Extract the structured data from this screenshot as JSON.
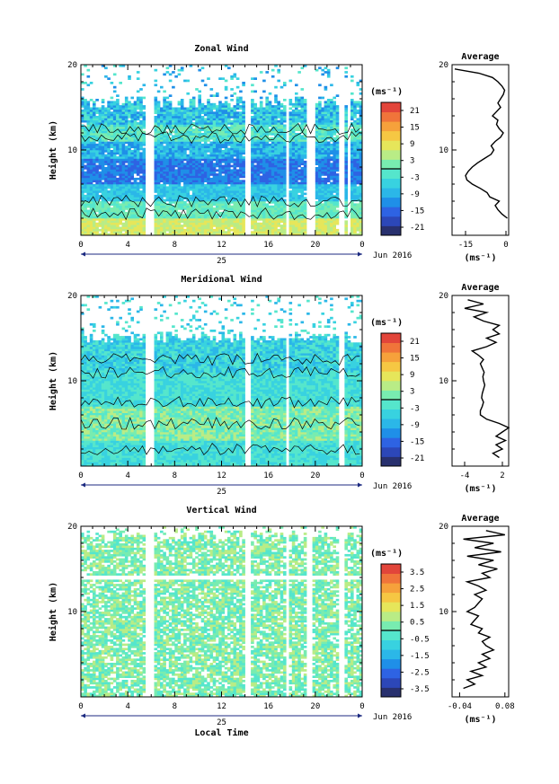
{
  "chart_data": [
    {
      "type": "heatmap",
      "title": "Zonal Wind",
      "ylabel": "Height (km)",
      "xticks": [
        "0",
        "4",
        "8",
        "12",
        "16",
        "20",
        "0"
      ],
      "yticks": [
        "20",
        "10"
      ],
      "date_label": "25",
      "month_label": "Jun 2016",
      "ylim": [
        0,
        20
      ],
      "xlim": [
        0,
        24
      ],
      "colorbar": {
        "unit_label": "(ms⁻¹)",
        "ticks": [
          "21",
          "15",
          "9",
          "3",
          "-3",
          "-9",
          "-15",
          "-21"
        ],
        "range": [
          -24,
          24
        ],
        "colors": [
          "#28306e",
          "#2c47b8",
          "#2e63e3",
          "#1f8fe8",
          "#2bb7e8",
          "#38d2e0",
          "#55e6cc",
          "#78ecb0",
          "#b9ec86",
          "#e6e65a",
          "#f6c743",
          "#f6a13b",
          "#f0743a",
          "#e2453a"
        ]
      },
      "profile": {
        "title": "Average",
        "xticks": [
          "-15",
          "0"
        ],
        "xlim": [
          -20,
          1
        ],
        "xlabel": "(ms⁻¹)",
        "yticks": [
          "20",
          "10"
        ],
        "height_km": [
          2.0,
          2.5,
          3.0,
          3.5,
          4.0,
          4.5,
          5.0,
          5.5,
          6.0,
          6.5,
          7.0,
          7.5,
          8.0,
          8.5,
          9.0,
          9.5,
          10.0,
          10.5,
          11.0,
          11.5,
          12.0,
          12.5,
          13.0,
          13.5,
          14.0,
          14.5,
          15.0,
          15.5,
          16.0,
          16.5,
          17.0,
          17.5,
          18.0,
          18.5,
          19.0,
          19.5
        ],
        "speed": [
          0.5,
          -1.5,
          -3.0,
          -4.0,
          -2.5,
          -6.0,
          -7.0,
          -9.5,
          -12.5,
          -14.5,
          -15.0,
          -14.0,
          -12.5,
          -10.5,
          -8.0,
          -5.5,
          -4.5,
          -5.5,
          -4.0,
          -2.0,
          -1.0,
          -2.5,
          -3.5,
          -3.0,
          -5.0,
          -3.5,
          -2.0,
          -3.0,
          -2.0,
          -1.0,
          -0.5,
          -1.5,
          -3.0,
          -5.0,
          -10.0,
          -19.0
        ]
      }
    },
    {
      "type": "heatmap",
      "title": "Meridional Wind",
      "ylabel": "Height (km)",
      "xticks": [
        "0",
        "4",
        "8",
        "12",
        "16",
        "20",
        "0"
      ],
      "yticks": [
        "20",
        "10"
      ],
      "date_label": "25",
      "month_label": "Jun 2016",
      "ylim": [
        0,
        20
      ],
      "xlim": [
        0,
        24
      ],
      "colorbar": {
        "unit_label": "(ms⁻¹)",
        "ticks": [
          "21",
          "15",
          "9",
          "3",
          "-3",
          "-9",
          "-15",
          "-21"
        ],
        "range": [
          -24,
          24
        ],
        "colors": [
          "#28306e",
          "#2c47b8",
          "#2e63e3",
          "#1f8fe8",
          "#2bb7e8",
          "#38d2e0",
          "#55e6cc",
          "#78ecb0",
          "#b9ec86",
          "#e6e65a",
          "#f6c743",
          "#f6a13b",
          "#f0743a",
          "#e2453a"
        ]
      },
      "profile": {
        "title": "Average",
        "xticks": [
          "-4",
          "2"
        ],
        "xlim": [
          -6,
          3
        ],
        "xlabel": "(ms⁻¹)",
        "yticks": [
          "20",
          "10"
        ],
        "height_km": [
          1.0,
          1.5,
          2.0,
          2.5,
          3.0,
          3.5,
          4.0,
          4.5,
          5.0,
          5.5,
          6.0,
          6.5,
          7.0,
          7.5,
          8.0,
          8.5,
          9.0,
          9.5,
          10.0,
          10.5,
          11.0,
          11.5,
          12.0,
          12.5,
          13.0,
          13.5,
          14.0,
          14.5,
          15.0,
          15.5,
          16.0,
          16.5,
          17.0,
          17.5,
          18.0,
          18.5,
          19.0,
          19.5
        ],
        "speed": [
          1.5,
          0.5,
          2.0,
          1.0,
          2.5,
          1.0,
          2.0,
          3.0,
          1.5,
          -0.5,
          -1.5,
          -1.5,
          -1.2,
          -1.0,
          -1.3,
          -1.2,
          -1.0,
          -0.8,
          -1.0,
          -1.1,
          -0.9,
          -1.2,
          -1.5,
          -1.0,
          -1.8,
          -2.8,
          -0.5,
          1.0,
          -0.5,
          1.5,
          0.5,
          1.5,
          -1.0,
          -2.5,
          -0.5,
          -4.0,
          -1.0,
          -3.5
        ]
      }
    },
    {
      "type": "heatmap",
      "title": "Vertical Wind",
      "ylabel": "Height (km)",
      "xlabel": "Local Time",
      "xticks": [
        "0",
        "4",
        "8",
        "12",
        "16",
        "20",
        "0"
      ],
      "yticks": [
        "20",
        "10"
      ],
      "date_label": "25",
      "month_label": "Jun 2016",
      "ylim": [
        0,
        20
      ],
      "xlim": [
        0,
        24
      ],
      "colorbar": {
        "unit_label": "(ms⁻¹)",
        "ticks": [
          "3.5",
          "2.5",
          "1.5",
          "0.5",
          "-0.5",
          "-1.5",
          "-2.5",
          "-3.5"
        ],
        "range": [
          -4,
          4
        ],
        "colors": [
          "#28306e",
          "#2c47b8",
          "#2e63e3",
          "#1f8fe8",
          "#2bb7e8",
          "#38d2e0",
          "#55e6cc",
          "#78ecb0",
          "#b9ec86",
          "#e6e65a",
          "#f6c743",
          "#f6a13b",
          "#f0743a",
          "#e2453a"
        ]
      },
      "profile": {
        "title": "Average",
        "xticks": [
          "-0.04",
          "0.08"
        ],
        "xlim": [
          -0.06,
          0.09
        ],
        "xlabel": "(ms⁻¹)",
        "yticks": [
          "20",
          "10"
        ],
        "height_km": [
          1.0,
          1.5,
          2.0,
          2.5,
          3.0,
          3.5,
          4.0,
          4.5,
          5.0,
          5.5,
          6.0,
          6.5,
          7.0,
          7.5,
          8.0,
          8.5,
          9.0,
          9.5,
          10.0,
          10.5,
          11.0,
          11.5,
          12.0,
          12.5,
          13.0,
          13.5,
          14.0,
          14.5,
          15.0,
          15.5,
          16.0,
          16.5,
          17.0,
          17.5,
          18.0,
          18.5,
          19.0,
          19.5
        ],
        "speed": [
          -0.03,
          0.0,
          -0.02,
          0.02,
          -0.01,
          0.03,
          0.01,
          0.04,
          0.02,
          0.05,
          0.03,
          0.02,
          0.04,
          0.01,
          0.02,
          -0.01,
          0.0,
          0.01,
          -0.02,
          0.0,
          0.01,
          0.02,
          0.0,
          0.03,
          0.01,
          -0.02,
          0.04,
          0.02,
          0.06,
          0.01,
          0.05,
          -0.02,
          0.07,
          0.0,
          0.05,
          -0.03,
          0.08,
          0.03
        ]
      }
    }
  ]
}
